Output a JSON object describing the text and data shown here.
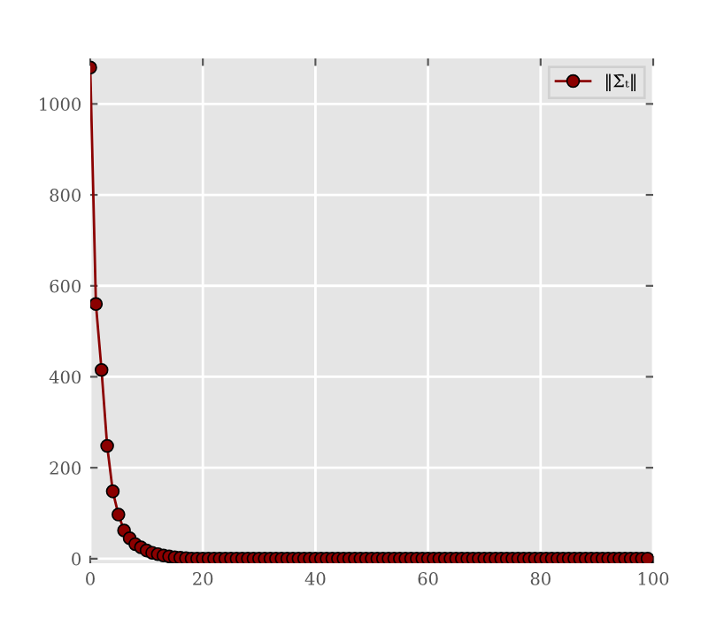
{
  "chart_data": {
    "type": "line",
    "x": [
      0,
      1,
      2,
      3,
      4,
      5,
      6,
      7,
      8,
      9,
      10,
      11,
      12,
      13,
      14,
      15,
      16,
      17,
      18,
      19,
      20,
      21,
      22,
      23,
      24,
      25,
      26,
      27,
      28,
      29,
      30,
      31,
      32,
      33,
      34,
      35,
      36,
      37,
      38,
      39,
      40,
      41,
      42,
      43,
      44,
      45,
      46,
      47,
      48,
      49,
      50,
      51,
      52,
      53,
      54,
      55,
      56,
      57,
      58,
      59,
      60,
      61,
      62,
      63,
      64,
      65,
      66,
      67,
      68,
      69,
      70,
      71,
      72,
      73,
      74,
      75,
      76,
      77,
      78,
      79,
      80,
      81,
      82,
      83,
      84,
      85,
      86,
      87,
      88,
      89,
      90,
      91,
      92,
      93,
      94,
      95,
      96,
      97,
      98,
      99
    ],
    "series": [
      {
        "name": "‖Σ̄ₜ‖",
        "color": "#8b0000",
        "values": [
          1080,
          560,
          415,
          248,
          148,
          97,
          62,
          45,
          32,
          25,
          18,
          13,
          10,
          7,
          5,
          3,
          2,
          1,
          0,
          0,
          0,
          0,
          0,
          0,
          0,
          0,
          0,
          0,
          0,
          0,
          0,
          0,
          0,
          0,
          0,
          0,
          0,
          0,
          0,
          0,
          0,
          0,
          0,
          0,
          0,
          0,
          0,
          0,
          0,
          0,
          0,
          0,
          0,
          0,
          0,
          0,
          0,
          0,
          0,
          0,
          0,
          0,
          0,
          0,
          0,
          0,
          0,
          0,
          0,
          0,
          0,
          0,
          0,
          0,
          0,
          0,
          0,
          0,
          0,
          0,
          0,
          0,
          0,
          0,
          0,
          0,
          0,
          0,
          0,
          0,
          0,
          0,
          0,
          0,
          0,
          0,
          0,
          0,
          0,
          0
        ]
      }
    ],
    "xlim": [
      0,
      100
    ],
    "xticks": [
      0,
      20,
      40,
      60,
      80,
      100
    ],
    "ylim": [
      -10,
      1100
    ],
    "yticks": [
      0,
      200,
      400,
      600,
      800,
      1000
    ],
    "grid": true,
    "legend": "top right",
    "marker": "circle",
    "line_style": "solid"
  }
}
